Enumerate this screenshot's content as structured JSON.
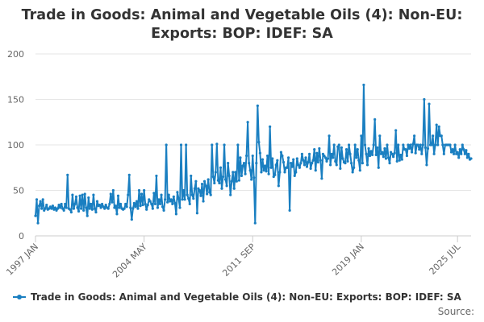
{
  "chart_data": {
    "type": "line",
    "title_lines": [
      "Trade in Goods: Animal and Vegetable Oils (4): Non-EU:",
      "Exports: BOP: IDEF: SA"
    ],
    "xlabel": "",
    "ylabel": "",
    "ylim": [
      0,
      200
    ],
    "y_ticks": [
      "0",
      "50",
      "100",
      "150",
      "200"
    ],
    "x_tick_labels": [
      "1997 JAN",
      "2004 MAY",
      "2011 SEP",
      "2019 JAN",
      "2025 JUL"
    ],
    "x_tick_index": [
      0,
      88,
      176,
      264,
      342
    ],
    "grid": "horizontal",
    "legend_position": "bottom-left",
    "series": [
      {
        "name": "Trade in Goods: Animal and Vegetable Oils (4): Non-EU: Exports: BOP: IDEF: SA",
        "color": "#1a7fc1",
        "values": [
          22,
          40,
          14,
          33,
          38,
          30,
          40,
          28,
          30,
          34,
          29,
          30,
          32,
          30,
          33,
          29,
          31,
          28,
          30,
          34,
          31,
          35,
          30,
          28,
          35,
          31,
          67,
          30,
          29,
          26,
          45,
          30,
          35,
          43,
          31,
          27,
          44,
          30,
          45,
          28,
          46,
          31,
          22,
          42,
          30,
          35,
          29,
          45,
          30,
          26,
          38,
          33,
          34,
          31,
          35,
          32,
          30,
          34,
          31,
          30,
          35,
          46,
          37,
          50,
          31,
          33,
          24,
          44,
          31,
          35,
          30,
          29,
          30,
          35,
          32,
          45,
          67,
          31,
          18,
          30,
          36,
          32,
          38,
          30,
          50,
          33,
          46,
          34,
          50,
          35,
          29,
          34,
          40,
          38,
          35,
          30,
          47,
          35,
          66,
          31,
          40,
          35,
          45,
          32,
          28,
          40,
          100,
          37,
          45,
          38,
          40,
          35,
          43,
          36,
          24,
          48,
          41,
          31,
          100,
          40,
          50,
          40,
          100,
          45,
          41,
          35,
          66,
          45,
          41,
          52,
          60,
          25,
          52,
          50,
          44,
          57,
          38,
          60,
          55,
          46,
          62,
          48,
          45,
          100,
          65,
          58,
          70,
          101,
          61,
          58,
          75,
          52,
          65,
          100,
          62,
          55,
          80,
          66,
          45,
          60,
          70,
          52,
          70,
          60,
          100,
          61,
          86,
          66,
          77,
          80,
          68,
          88,
          125,
          80,
          72,
          62,
          88,
          64,
          14,
          80,
          143,
          103,
          91,
          70,
          84,
          72,
          77,
          71,
          88,
          68,
          120,
          75,
          85,
          65,
          67,
          78,
          83,
          55,
          70,
          92,
          88,
          81,
          70,
          75,
          75,
          86,
          28,
          80,
          76,
          84,
          66,
          70,
          85,
          78,
          75,
          80,
          90,
          83,
          78,
          86,
          76,
          81,
          90,
          74,
          80,
          83,
          95,
          72,
          91,
          81,
          96,
          83,
          63,
          90,
          88,
          86,
          82,
          85,
          110,
          78,
          90,
          86,
          100,
          82,
          78,
          98,
          100,
          74,
          97,
          85,
          81,
          80,
          95,
          82,
          100,
          90,
          80,
          70,
          75,
          100,
          86,
          95,
          83,
          72,
          110,
          80,
          166,
          100,
          90,
          78,
          96,
          88,
          93,
          89,
          100,
          128,
          89,
          97,
          75,
          110,
          90,
          92,
          87,
          96,
          85,
          100,
          86,
          80,
          92,
          90,
          87,
          91,
          116,
          82,
          100,
          83,
          89,
          84,
          100,
          95,
          95,
          88,
          100,
          96,
          100,
          92,
          101,
          110,
          91,
          100,
          100,
          95,
          100,
          90,
          100,
          150,
          97,
          78,
          96,
          145,
          100,
          100,
          110,
          90,
          100,
          122,
          100,
          120,
          110,
          110,
          100,
          90,
          100,
          100,
          100,
          100,
          100,
          92,
          95,
          90,
          100,
          90,
          92,
          86,
          95,
          90,
          100,
          95,
          90,
          94,
          86,
          90,
          84,
          85
        ]
      }
    ]
  },
  "source_label": "Source:"
}
